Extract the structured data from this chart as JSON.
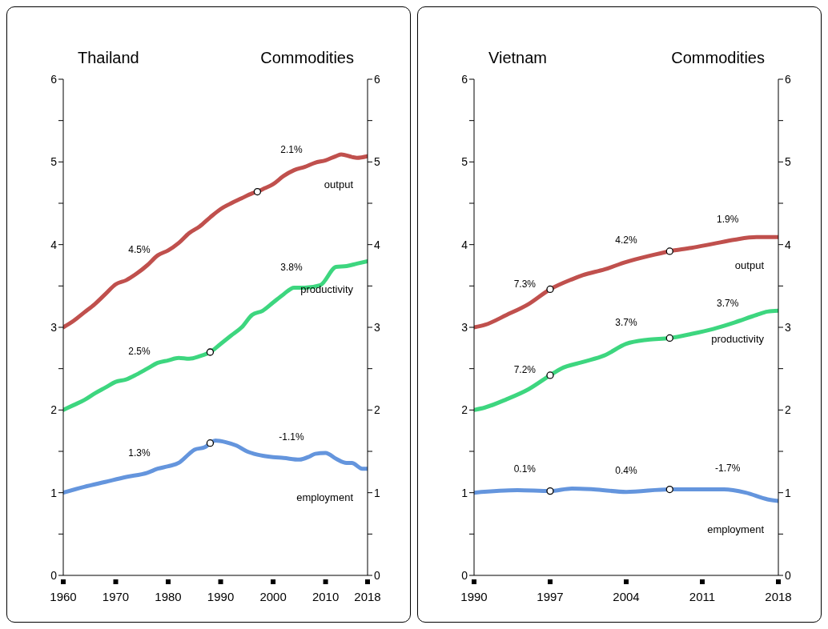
{
  "chart_data": [
    {
      "type": "line",
      "title": "Thailand",
      "subtitle": "Commodities",
      "marker": "none",
      "line_style": "solid",
      "xlim": [
        1960,
        2018
      ],
      "xticks": [
        1960,
        1970,
        1980,
        1990,
        2000,
        2010,
        2018
      ],
      "ylim": [
        0,
        6
      ],
      "yticks": [
        0,
        {
          "value": 0.5,
          "label": null
        },
        1,
        {
          "value": 1.5,
          "label": null
        },
        2,
        {
          "value": 2.5,
          "label": null
        },
        3,
        {
          "value": 3.5,
          "label": null
        },
        4,
        {
          "value": 4.5,
          "label": null
        },
        5,
        {
          "value": 5.5,
          "label": null
        },
        6
      ],
      "y2lim": [
        0,
        6
      ],
      "y2ticks": [
        0,
        {
          "value": 0.5,
          "label": null
        },
        1,
        {
          "value": 1.5,
          "label": null
        },
        2,
        {
          "value": 2.5,
          "label": null
        },
        3,
        {
          "value": 3.5,
          "label": null
        },
        4,
        {
          "value": 4.5,
          "label": null
        },
        5,
        {
          "value": 5.5,
          "label": null
        },
        6
      ],
      "series": [
        {
          "name": "output",
          "color": "#c0504d",
          "x": [
            1960,
            1962,
            1964,
            1966,
            1968,
            1970,
            1972,
            1974,
            1976,
            1978,
            1980,
            1982,
            1984,
            1986,
            1988,
            1990,
            1992,
            1994,
            1996,
            1997,
            1998,
            2000,
            2002,
            2004,
            2006,
            2008,
            2010,
            2012,
            2013,
            2015,
            2016,
            2018
          ],
          "values": [
            3.0,
            3.08,
            3.18,
            3.28,
            3.4,
            3.52,
            3.57,
            3.65,
            3.75,
            3.87,
            3.93,
            4.02,
            4.14,
            4.22,
            4.33,
            4.43,
            4.5,
            4.56,
            4.62,
            4.64,
            4.67,
            4.73,
            4.83,
            4.9,
            4.94,
            4.99,
            5.02,
            5.07,
            5.09,
            5.06,
            5.05,
            5.07
          ]
        },
        {
          "name": "productivity",
          "color": "#3dd67f",
          "x": [
            1960,
            1962,
            1964,
            1966,
            1968,
            1970,
            1972,
            1974,
            1976,
            1978,
            1980,
            1982,
            1984,
            1986,
            1988,
            1990,
            1992,
            1994,
            1996,
            1998,
            2000,
            2002,
            2004,
            2006,
            2009,
            2012,
            2014,
            2016,
            2018
          ],
          "values": [
            2.0,
            2.06,
            2.12,
            2.2,
            2.27,
            2.34,
            2.37,
            2.43,
            2.5,
            2.57,
            2.6,
            2.63,
            2.62,
            2.65,
            2.7,
            2.8,
            2.9,
            3.0,
            3.15,
            3.2,
            3.3,
            3.4,
            3.48,
            3.48,
            3.51,
            3.73,
            3.74,
            3.77,
            3.8
          ]
        },
        {
          "name": "employment",
          "color": "#6495dd",
          "x": [
            1960,
            1964,
            1968,
            1972,
            1976,
            1978,
            1980,
            1982,
            1984,
            1985,
            1987,
            1988,
            1989,
            1991,
            1993,
            1995,
            1997,
            2000,
            2002,
            2005,
            2007,
            2008,
            2010,
            2012,
            2014,
            2015,
            2017,
            2018
          ],
          "values": [
            1.0,
            1.07,
            1.13,
            1.19,
            1.24,
            1.29,
            1.32,
            1.36,
            1.47,
            1.52,
            1.55,
            1.6,
            1.63,
            1.61,
            1.57,
            1.5,
            1.46,
            1.43,
            1.42,
            1.4,
            1.44,
            1.47,
            1.48,
            1.41,
            1.36,
            1.36,
            1.29,
            1.29
          ]
        },
        {
          "type": "scatter",
          "marker": "circle",
          "color": "#ffffff",
          "x": [
            1997,
            1988,
            1988
          ],
          "values": [
            4.64,
            2.7,
            1.6
          ]
        }
      ],
      "annotations": [
        "4.5%",
        "2.1%",
        "2.5%",
        "3.8%",
        "1.3%",
        "-1.1%"
      ]
    },
    {
      "type": "line",
      "title": "Vietnam",
      "subtitle": "Commodities",
      "marker": "none",
      "line_style": "solid",
      "xlim": [
        1990,
        2018
      ],
      "xticks": [
        1990,
        1997,
        2004,
        2011,
        2018
      ],
      "ylim": [
        0,
        6
      ],
      "yticks": [
        0,
        {
          "value": 0.5,
          "label": null
        },
        1,
        {
          "value": 1.5,
          "label": null
        },
        2,
        {
          "value": 2.5,
          "label": null
        },
        3,
        {
          "value": 3.5,
          "label": null
        },
        4,
        {
          "value": 4.5,
          "label": null
        },
        5,
        {
          "value": 5.5,
          "label": null
        },
        6
      ],
      "y2lim": [
        0,
        6
      ],
      "y2ticks": [
        0,
        {
          "value": 0.5,
          "label": null
        },
        1,
        {
          "value": 1.5,
          "label": null
        },
        2,
        {
          "value": 2.5,
          "label": null
        },
        3,
        {
          "value": 3.5,
          "label": null
        },
        4,
        {
          "value": 4.5,
          "label": null
        },
        5,
        {
          "value": 5.5,
          "label": null
        },
        6
      ],
      "series": [
        {
          "name": "output",
          "color": "#c0504d",
          "x": [
            1990,
            1991,
            1993,
            1995,
            1997,
            1999,
            2000,
            2002,
            2004,
            2006,
            2008,
            2010,
            2012,
            2014,
            2016,
            2018
          ],
          "values": [
            3.0,
            3.03,
            3.15,
            3.28,
            3.46,
            3.58,
            3.63,
            3.7,
            3.79,
            3.86,
            3.92,
            3.96,
            4.01,
            4.06,
            4.09,
            4.09
          ]
        },
        {
          "name": "productivity",
          "color": "#3dd67f",
          "x": [
            1990,
            1991,
            1993,
            1995,
            1997,
            1998,
            2000,
            2002,
            2004,
            2006,
            2008,
            2010,
            2012,
            2014,
            2016,
            2017,
            2018
          ],
          "values": [
            2.0,
            2.03,
            2.13,
            2.25,
            2.42,
            2.5,
            2.58,
            2.66,
            2.8,
            2.85,
            2.87,
            2.92,
            2.98,
            3.06,
            3.15,
            3.19,
            3.2
          ]
        },
        {
          "name": "employment",
          "color": "#6495dd",
          "x": [
            1990,
            1994,
            1997,
            1999,
            2001,
            2004,
            2008,
            2010,
            2013,
            2015,
            2017,
            2018
          ],
          "values": [
            1.0,
            1.03,
            1.02,
            1.05,
            1.04,
            1.01,
            1.04,
            1.04,
            1.04,
            1.0,
            0.92,
            0.9
          ]
        },
        {
          "type": "scatter",
          "marker": "circle",
          "color": "#ffffff",
          "x": [
            1997,
            2008,
            1997,
            2008,
            1997,
            2008
          ],
          "values": [
            3.46,
            3.92,
            2.42,
            2.87,
            1.02,
            1.04
          ]
        }
      ],
      "annotations": [
        "7.3%",
        "4.2%",
        "1.9%",
        "7.2%",
        "3.7%",
        "3.7%",
        "0.1%",
        "0.4%",
        "-1.7%"
      ]
    }
  ]
}
